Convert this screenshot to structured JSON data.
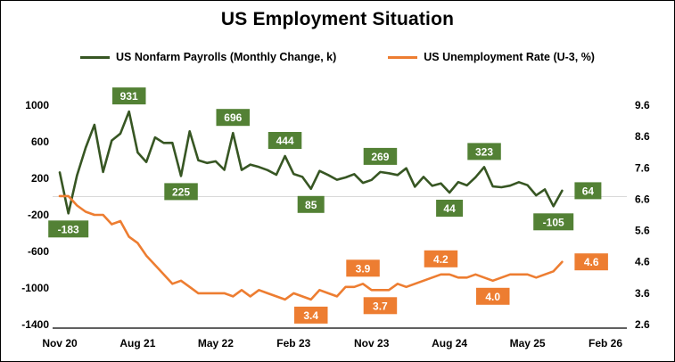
{
  "title": "US Employment Situation",
  "legend": [
    {
      "label": "US Nonfarm Payrolls (Monthly Change, k)",
      "color": "#375623"
    },
    {
      "label": "US Unemployment Rate (U-3, %)",
      "color": "#ED7D31"
    }
  ],
  "chart_data": {
    "type": "line",
    "title": "US Employment Situation",
    "x_tick_labels": [
      "Nov 20",
      "Aug 21",
      "May 22",
      "Feb 23",
      "Nov 23",
      "Aug 24",
      "May 25",
      "Feb 26"
    ],
    "x_tick_positions": [
      0,
      9,
      18,
      27,
      36,
      45,
      54,
      63
    ],
    "x_total_months": 63,
    "grid": "single horizontal line at left-axis 0",
    "legend_position": "top",
    "left_axis": {
      "ticks": [
        1000,
        600,
        200,
        -200,
        -600,
        -1000,
        -1400
      ],
      "min": -1400,
      "max": 1000
    },
    "right_axis": {
      "ticks": [
        9.6,
        8.6,
        7.6,
        6.6,
        5.6,
        4.6,
        3.6,
        2.6
      ],
      "min": 2.6,
      "max": 9.6
    },
    "series": [
      {
        "id": "nonfarm-payrolls",
        "name": "US Nonfarm Payrolls (Monthly Change, k)",
        "axis": "left",
        "color": "#375623",
        "label_bg": "#538135",
        "start_month": "Nov 2020",
        "values": [
          264,
          -183,
          233,
          536,
          785,
          269,
          614,
          690,
          931,
          483,
          379,
          648,
          587,
          588,
          225,
          714,
          398,
          368,
          386,
          293,
          696,
          292,
          350,
          324,
          290,
          239,
          444,
          248,
          217,
          85,
          281,
          236,
          184,
          210,
          246,
          150,
          182,
          269,
          256,
          236,
          310,
          108,
          216,
          118,
          144,
          44,
          159,
          123,
          212,
          323,
          111,
          102,
          120,
          158,
          125,
          14,
          79,
          -105,
          64
        ],
        "labels": [
          {
            "index": 1,
            "text": "-183",
            "position": "below"
          },
          {
            "index": 8,
            "text": "931",
            "position": "above"
          },
          {
            "index": 14,
            "text": "225",
            "position": "below"
          },
          {
            "index": 20,
            "text": "696",
            "position": "above"
          },
          {
            "index": 26,
            "text": "444",
            "position": "above"
          },
          {
            "index": 29,
            "text": "85",
            "position": "below"
          },
          {
            "index": 37,
            "text": "269",
            "position": "above"
          },
          {
            "index": 45,
            "text": "44",
            "position": "below"
          },
          {
            "index": 49,
            "text": "323",
            "position": "above"
          },
          {
            "index": 57,
            "text": "-105",
            "position": "below"
          },
          {
            "index": 58,
            "text": "64",
            "position": "right"
          }
        ]
      },
      {
        "id": "unemployment-rate",
        "name": "US Unemployment Rate (U-3, %)",
        "axis": "right",
        "color": "#ED7D31",
        "label_bg": "#ED7D31",
        "start_month": "Nov 2020",
        "values": [
          6.7,
          6.7,
          6.4,
          6.2,
          6.1,
          6.1,
          5.8,
          5.9,
          5.4,
          5.2,
          4.8,
          4.5,
          4.2,
          3.9,
          4.0,
          3.8,
          3.6,
          3.6,
          3.6,
          3.6,
          3.5,
          3.7,
          3.5,
          3.7,
          3.6,
          3.5,
          3.4,
          3.6,
          3.5,
          3.4,
          3.7,
          3.6,
          3.5,
          3.8,
          3.8,
          3.9,
          3.7,
          3.7,
          3.7,
          3.9,
          3.8,
          3.9,
          4.0,
          4.1,
          4.2,
          4.2,
          4.1,
          4.1,
          4.2,
          4.1,
          4.0,
          4.1,
          4.2,
          4.2,
          4.2,
          4.1,
          4.2,
          4.3,
          4.6
        ],
        "labels": [
          {
            "index": 29,
            "text": "3.4",
            "position": "below"
          },
          {
            "index": 35,
            "text": "3.9",
            "position": "above"
          },
          {
            "index": 37,
            "text": "3.7",
            "position": "below"
          },
          {
            "index": 44,
            "text": "4.2",
            "position": "above"
          },
          {
            "index": 50,
            "text": "4.0",
            "position": "below"
          },
          {
            "index": 58,
            "text": "4.6",
            "position": "right"
          }
        ]
      }
    ]
  }
}
